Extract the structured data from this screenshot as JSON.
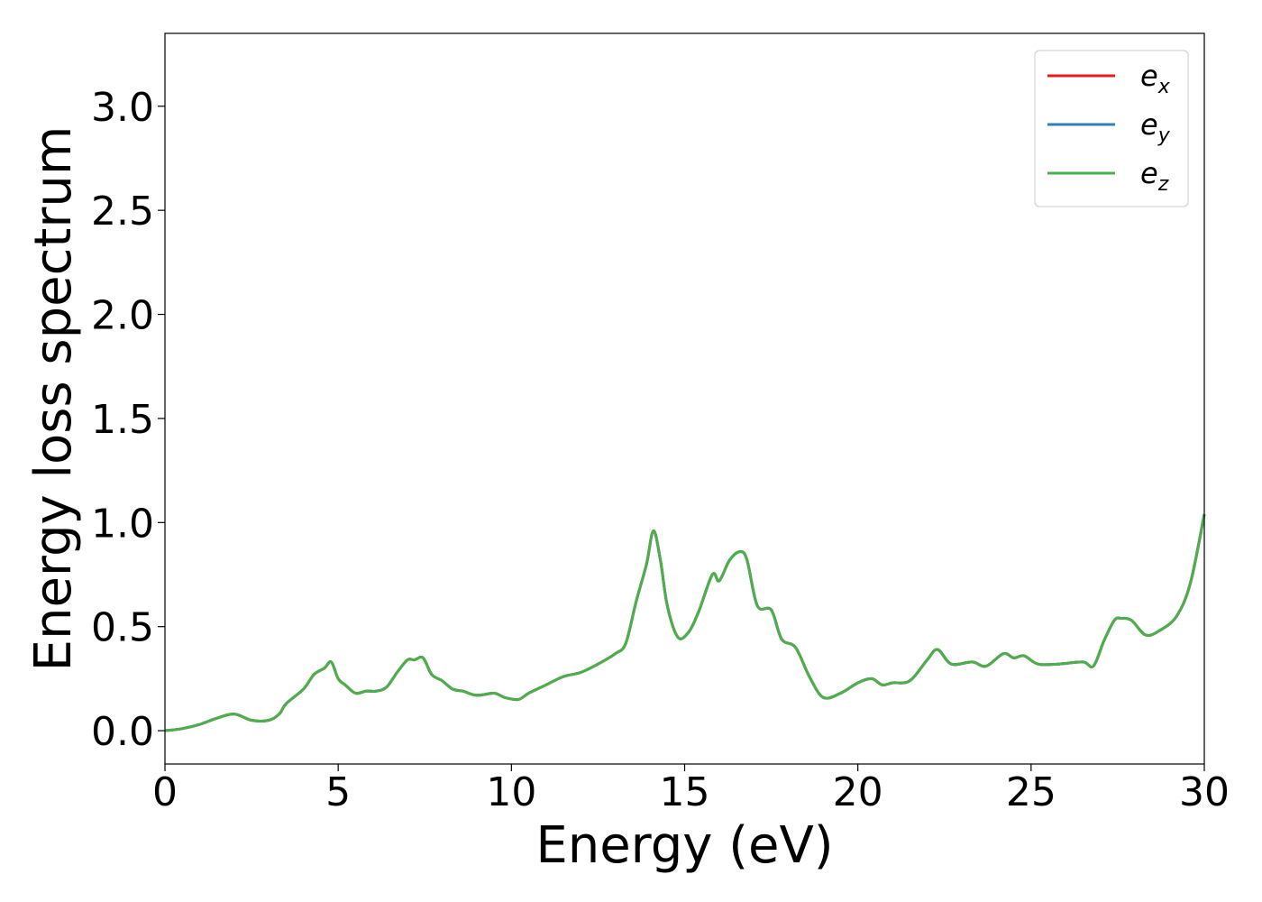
{
  "chart_data": {
    "type": "line",
    "xlabel": "Energy (eV)",
    "ylabel": "Energy loss spectrum",
    "xlim": [
      0,
      30
    ],
    "ylim": [
      -0.16,
      3.35
    ],
    "xticks": [
      0,
      5,
      10,
      15,
      20,
      25,
      30
    ],
    "xtick_labels": [
      "0",
      "5",
      "10",
      "15",
      "20",
      "25",
      "30"
    ],
    "yticks": [
      0.0,
      0.5,
      1.0,
      1.5,
      2.0,
      2.5,
      3.0
    ],
    "ytick_labels": [
      "0.0",
      "0.5",
      "1.0",
      "1.5",
      "2.0",
      "2.5",
      "3.0"
    ],
    "grid": false,
    "legend_position": "top-right",
    "legend": [
      {
        "label": "e",
        "sub": "x",
        "color": "#e41a1c"
      },
      {
        "label": "e",
        "sub": "y",
        "color": "#377eb8"
      },
      {
        "label": "e",
        "sub": "z",
        "color": "#4daf4a"
      }
    ],
    "x": [
      0,
      0.5,
      1,
      1.5,
      2,
      2.5,
      3,
      3.3,
      3.5,
      4,
      4.3,
      4.6,
      4.8,
      5,
      5.2,
      5.5,
      5.8,
      6.1,
      6.4,
      6.7,
      7,
      7.2,
      7.45,
      7.7,
      8,
      8.3,
      8.6,
      9,
      9.5,
      9.8,
      10.2,
      10.5,
      11,
      11.5,
      12,
      12.5,
      13,
      13.3,
      13.6,
      13.9,
      14.1,
      14.3,
      14.5,
      14.8,
      15.1,
      15.4,
      15.8,
      16,
      16.3,
      16.6,
      16.8,
      17.1,
      17.5,
      17.8,
      18.2,
      18.6,
      19,
      19.5,
      20,
      20.4,
      20.7,
      21,
      21.5,
      22,
      22.3,
      22.7,
      23.3,
      23.7,
      24.2,
      24.5,
      24.8,
      25.2,
      25.8,
      26.5,
      26.8,
      27.1,
      27.4,
      27.6,
      27.9,
      28.3,
      28.7,
      29.2,
      29.6,
      30
    ],
    "series": [
      {
        "name": "e_x",
        "color": "#e41a1c",
        "y": [
          0.0,
          0.01,
          0.03,
          0.06,
          0.08,
          0.05,
          0.05,
          0.08,
          0.13,
          0.2,
          0.27,
          0.3,
          0.33,
          0.25,
          0.22,
          0.18,
          0.19,
          0.19,
          0.21,
          0.28,
          0.34,
          0.34,
          0.35,
          0.27,
          0.24,
          0.2,
          0.19,
          0.17,
          0.18,
          0.16,
          0.15,
          0.18,
          0.22,
          0.26,
          0.28,
          0.32,
          0.37,
          0.42,
          0.62,
          0.8,
          0.96,
          0.82,
          0.6,
          0.45,
          0.47,
          0.57,
          0.75,
          0.72,
          0.82,
          0.86,
          0.82,
          0.6,
          0.58,
          0.44,
          0.4,
          0.26,
          0.16,
          0.18,
          0.23,
          0.25,
          0.22,
          0.23,
          0.24,
          0.34,
          0.39,
          0.32,
          0.33,
          0.31,
          0.37,
          0.35,
          0.36,
          0.32,
          0.32,
          0.33,
          0.31,
          0.43,
          0.53,
          0.54,
          0.53,
          0.46,
          0.48,
          0.55,
          0.71,
          1.04
        ]
      },
      {
        "name": "e_y",
        "color": "#377eb8",
        "y": [
          0.0,
          0.01,
          0.03,
          0.06,
          0.08,
          0.05,
          0.05,
          0.08,
          0.13,
          0.2,
          0.27,
          0.3,
          0.33,
          0.25,
          0.22,
          0.18,
          0.19,
          0.19,
          0.21,
          0.28,
          0.34,
          0.34,
          0.35,
          0.27,
          0.24,
          0.2,
          0.19,
          0.17,
          0.18,
          0.16,
          0.15,
          0.18,
          0.22,
          0.26,
          0.28,
          0.32,
          0.37,
          0.42,
          0.62,
          0.8,
          0.96,
          0.82,
          0.6,
          0.45,
          0.47,
          0.57,
          0.75,
          0.72,
          0.82,
          0.86,
          0.82,
          0.6,
          0.58,
          0.44,
          0.4,
          0.26,
          0.16,
          0.18,
          0.23,
          0.25,
          0.22,
          0.23,
          0.24,
          0.34,
          0.39,
          0.32,
          0.33,
          0.31,
          0.37,
          0.35,
          0.36,
          0.32,
          0.32,
          0.33,
          0.31,
          0.43,
          0.53,
          0.54,
          0.53,
          0.46,
          0.48,
          0.55,
          0.71,
          1.04
        ]
      },
      {
        "name": "e_z",
        "color": "#4daf4a",
        "y": [
          0.0,
          0.01,
          0.03,
          0.06,
          0.08,
          0.05,
          0.05,
          0.08,
          0.13,
          0.2,
          0.27,
          0.3,
          0.33,
          0.25,
          0.22,
          0.18,
          0.19,
          0.19,
          0.21,
          0.28,
          0.34,
          0.34,
          0.35,
          0.27,
          0.24,
          0.2,
          0.19,
          0.17,
          0.18,
          0.16,
          0.15,
          0.18,
          0.22,
          0.26,
          0.28,
          0.32,
          0.37,
          0.42,
          0.62,
          0.8,
          0.96,
          0.82,
          0.6,
          0.45,
          0.47,
          0.57,
          0.75,
          0.72,
          0.82,
          0.86,
          0.82,
          0.6,
          0.58,
          0.44,
          0.4,
          0.26,
          0.16,
          0.18,
          0.23,
          0.25,
          0.22,
          0.23,
          0.24,
          0.34,
          0.39,
          0.32,
          0.33,
          0.31,
          0.37,
          0.35,
          0.36,
          0.32,
          0.32,
          0.33,
          0.31,
          0.43,
          0.53,
          0.54,
          0.53,
          0.46,
          0.48,
          0.55,
          0.71,
          1.04
        ]
      }
    ]
  }
}
